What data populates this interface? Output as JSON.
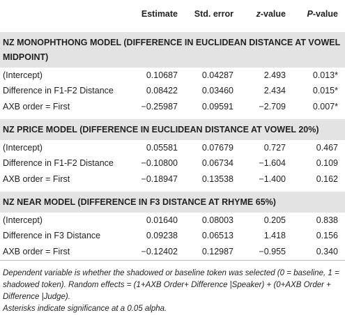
{
  "table": {
    "columns": [
      "Estimate",
      "Std. error",
      "z-value",
      "P-value"
    ],
    "sections": [
      {
        "title": "NZ MONOPHTHONG MODEL (DIFFERENCE IN EUCLIDEAN DISTANCE AT VOWEL MIDPOINT)",
        "rows": [
          [
            "(Intercept)",
            "0.10687",
            "0.04287",
            "2.493",
            "0.013*"
          ],
          [
            "Difference in F1-F2 Distance",
            "0.08422",
            "0.03460",
            "2.434",
            "0.015*"
          ],
          [
            "AXB order = First",
            "−0.25987",
            "0.09591",
            "−2.709",
            "0.007*"
          ]
        ]
      },
      {
        "title": "NZ PRICE MODEL (DIFFERENCE IN EUCLIDEAN DISTANCE AT VOWEL 20%)",
        "rows": [
          [
            "(Intercept)",
            "0.05581",
            "0.07679",
            "0.727",
            "0.467"
          ],
          [
            "Difference in F1-F2 Distance",
            "−0.10800",
            "0.06734",
            "−1.604",
            "0.109"
          ],
          [
            "AXB order = First",
            "−0.18947",
            "0.13538",
            "−1.400",
            "0.162"
          ]
        ]
      },
      {
        "title": "NZ NEAR MODEL (DIFFERENCE IN F3 DISTANCE AT RHYME 65%)",
        "rows": [
          [
            "(Intercept)",
            "0.01640",
            "0.08003",
            "0.205",
            "0.838"
          ],
          [
            "Difference in F3 Distance",
            "0.09238",
            "0.06513",
            "1.418",
            "0.156"
          ],
          [
            "AXB order = First",
            "−0.12402",
            "0.12987",
            "−0.955",
            "0.340"
          ]
        ]
      }
    ],
    "notes": [
      "Dependent variable is whether the shadowed or baseline token was selected (0 = baseline, 1 = shadowed token). Random effects = (1+AXB Order+ Difference |Speaker) + (0+AXB Order + Difference |Judge).",
      "Asterisks indicate significance at a 0.05 alpha."
    ]
  }
}
